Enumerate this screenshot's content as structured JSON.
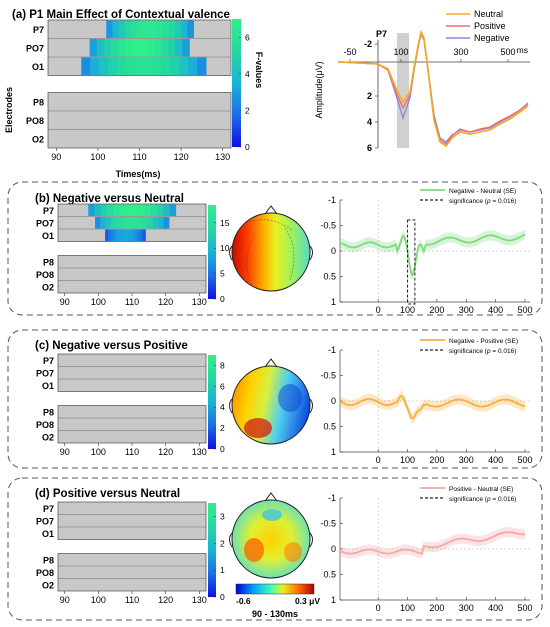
{
  "colors": {
    "neutral": "#f2a91e",
    "positive": "#ee6f6f",
    "negative": "#8a86e0",
    "diff_b": "#7fd97f",
    "diff_c": "#f5b041",
    "diff_d": "#f4a7a7",
    "grey_bg": "#c8c8c8",
    "highlight": "#d0d0d0"
  },
  "panel_a": {
    "title": "(a) P1 Main Effect of Contextual valence",
    "ylabel": "Electrodes",
    "xlabel": "Times(ms)",
    "colorbar_label": "F-values",
    "colorbar_ticks": [
      "0",
      "2",
      "4",
      "6"
    ],
    "colorbar_max": 7,
    "electrodes": [
      "P7",
      "PO7",
      "O1",
      "P8",
      "PO8",
      "O2"
    ],
    "x_ticks": [
      "90",
      "100",
      "110",
      "120",
      "130"
    ],
    "significant": [
      {
        "electrode": "P7",
        "start": 102,
        "end": 123,
        "peak": 6.5
      },
      {
        "electrode": "PO7",
        "start": 98,
        "end": 122,
        "peak": 7
      },
      {
        "electrode": "O1",
        "start": 96,
        "end": 126,
        "peak": 6
      }
    ]
  },
  "panel_a_wave": {
    "channel": "P7",
    "ylabel": "Amplitude(μV)",
    "x_unit": "ms",
    "x_ticks": [
      "-50",
      "100",
      "300",
      "500"
    ],
    "y_ticks": [
      "-2",
      "2",
      "4",
      "6"
    ],
    "legend": [
      "Neutral",
      "Positive",
      "Negative"
    ],
    "highlight_window": [
      90,
      130
    ]
  },
  "panel_b": {
    "title": "(b) Negative versus Neutral",
    "colorbar_ticks": [
      "0",
      "5",
      "10",
      "15"
    ],
    "colorbar_max": 17,
    "electrodes": [
      "P7",
      "PO7",
      "O1",
      "P8",
      "PO8",
      "O2"
    ],
    "x_ticks": [
      "90",
      "100",
      "110",
      "120",
      "130"
    ],
    "significant": [
      {
        "electrode": "P7",
        "start": 97,
        "end": 123,
        "peak": 17
      },
      {
        "electrode": "PO7",
        "start": 99,
        "end": 121,
        "peak": 15
      },
      {
        "electrode": "O1",
        "start": 102,
        "end": 114,
        "peak": 8
      }
    ],
    "legend_line": "Negative - Neutral (SE)",
    "legend_sig_text": "significance (",
    "legend_sig_p": "p",
    "legend_sig_val": " = 0.016)",
    "y_ticks": [
      "-1",
      "-0.5",
      "0",
      "0.5",
      "1"
    ],
    "x_wave_ticks": [
      "0",
      "100",
      "200",
      "300",
      "400",
      "500"
    ],
    "sig_window": [
      100,
      125
    ]
  },
  "panel_c": {
    "title": "(c) Negative versus Positive",
    "colorbar_ticks": [
      "0",
      "2",
      "4",
      "6",
      "8"
    ],
    "electrodes": [
      "P7",
      "PO7",
      "O1",
      "P8",
      "PO8",
      "O2"
    ],
    "x_ticks": [
      "90",
      "100",
      "110",
      "120",
      "130"
    ],
    "legend_line": "Negative - Positive (SE)",
    "legend_sig_text": "significance (",
    "legend_sig_p": "p",
    "legend_sig_val": " = 0.016)",
    "y_ticks": [
      "-1",
      "-0.5",
      "0",
      "0.5",
      "1"
    ],
    "x_wave_ticks": [
      "0",
      "100",
      "200",
      "300",
      "400",
      "500"
    ]
  },
  "panel_d": {
    "title": "(d) Positive versus Neutral",
    "colorbar_ticks": [
      "0",
      "1",
      "2",
      "3"
    ],
    "electrodes": [
      "P7",
      "PO7",
      "O1",
      "P8",
      "PO8",
      "O2"
    ],
    "x_ticks": [
      "90",
      "100",
      "110",
      "120",
      "130"
    ],
    "legend_line": "Positive - Neutral (SE)",
    "legend_sig_text": "significance (",
    "legend_sig_p": "p",
    "legend_sig_val": " = 0.016)",
    "y_ticks": [
      "-1",
      "-0.5",
      "0",
      "0.5",
      "1"
    ],
    "x_wave_ticks": [
      "0",
      "100",
      "200",
      "300",
      "400",
      "500"
    ],
    "topo_scale_min": "-0.6",
    "topo_scale_max": "0.3 μV",
    "topo_window": "90 - 130ms"
  }
}
